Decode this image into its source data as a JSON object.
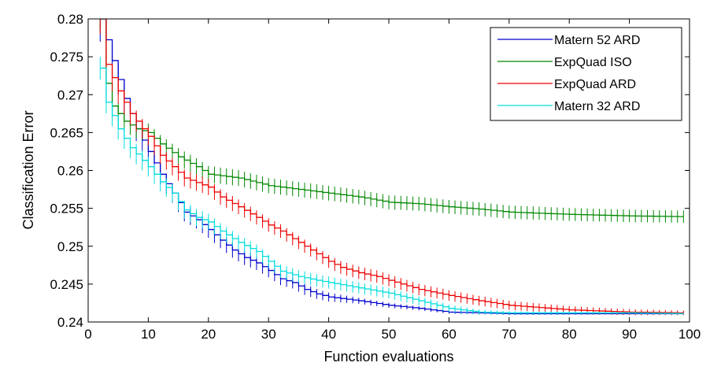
{
  "chart_data": {
    "type": "line",
    "title": "",
    "xlabel": "Function evaluations",
    "ylabel": "Classification Error",
    "xlim": [
      0,
      100
    ],
    "ylim": [
      0.24,
      0.28
    ],
    "xticks": [
      0,
      10,
      20,
      30,
      40,
      50,
      60,
      70,
      80,
      90,
      100
    ],
    "yticks": [
      0.24,
      0.245,
      0.25,
      0.255,
      0.26,
      0.265,
      0.27,
      0.275,
      0.28
    ],
    "xtick_labels": [
      "0",
      "10",
      "20",
      "30",
      "40",
      "50",
      "60",
      "70",
      "80",
      "90",
      "100"
    ],
    "ytick_labels": [
      "0.24",
      "0.245",
      "0.25",
      "0.255",
      "0.26",
      "0.265",
      "0.27",
      "0.275",
      "0.28"
    ],
    "grid": false,
    "legend_position": "top-right",
    "error_bars": true,
    "series": [
      {
        "name": "Matern 52 ARD",
        "color": "#0000cc",
        "knots": [
          [
            2,
            0.28
          ],
          [
            4,
            0.2745
          ],
          [
            6,
            0.2695
          ],
          [
            8,
            0.2655
          ],
          [
            10,
            0.2625
          ],
          [
            12,
            0.2595
          ],
          [
            14,
            0.257
          ],
          [
            16,
            0.2545
          ],
          [
            18,
            0.2535
          ],
          [
            20,
            0.2522
          ],
          [
            22,
            0.2508
          ],
          [
            24,
            0.2495
          ],
          [
            26,
            0.2485
          ],
          [
            28,
            0.2478
          ],
          [
            30,
            0.2468
          ],
          [
            32,
            0.2457
          ],
          [
            34,
            0.2452
          ],
          [
            36,
            0.2443
          ],
          [
            38,
            0.2437
          ],
          [
            40,
            0.2433
          ],
          [
            45,
            0.2428
          ],
          [
            50,
            0.2422
          ],
          [
            55,
            0.2418
          ],
          [
            60,
            0.2413
          ],
          [
            70,
            0.2411
          ],
          [
            80,
            0.2411
          ],
          [
            90,
            0.2411
          ],
          [
            99,
            0.2411
          ]
        ],
        "err_knots": [
          [
            2,
            0.003
          ],
          [
            5,
            0.002
          ],
          [
            10,
            0.0014
          ],
          [
            20,
            0.0011
          ],
          [
            30,
            0.0009
          ],
          [
            37,
            0.0007
          ],
          [
            45,
            0.0004
          ],
          [
            60,
            0.0002
          ],
          [
            99,
            0.0001
          ]
        ]
      },
      {
        "name": "ExpQuad ISO",
        "color": "#008800",
        "knots": [
          [
            2,
            0.28
          ],
          [
            3,
            0.2715
          ],
          [
            4,
            0.2685
          ],
          [
            6,
            0.2665
          ],
          [
            8,
            0.2655
          ],
          [
            10,
            0.265
          ],
          [
            12,
            0.2635
          ],
          [
            15,
            0.2618
          ],
          [
            18,
            0.2605
          ],
          [
            20,
            0.2595
          ],
          [
            25,
            0.259
          ],
          [
            30,
            0.258
          ],
          [
            35,
            0.2575
          ],
          [
            40,
            0.257
          ],
          [
            45,
            0.2565
          ],
          [
            50,
            0.2558
          ],
          [
            55,
            0.2556
          ],
          [
            60,
            0.2552
          ],
          [
            65,
            0.2549
          ],
          [
            70,
            0.2545
          ],
          [
            80,
            0.2542
          ],
          [
            90,
            0.254
          ],
          [
            99,
            0.2539
          ]
        ],
        "err_knots": [
          [
            2,
            0.0015
          ],
          [
            10,
            0.0012
          ],
          [
            30,
            0.001
          ],
          [
            60,
            0.0009
          ],
          [
            99,
            0.0008
          ]
        ]
      },
      {
        "name": "ExpQuad ARD",
        "color": "#ee0000",
        "knots": [
          [
            2,
            0.28
          ],
          [
            3,
            0.274
          ],
          [
            5,
            0.2705
          ],
          [
            7,
            0.2675
          ],
          [
            10,
            0.2645
          ],
          [
            12,
            0.262
          ],
          [
            14,
            0.2605
          ],
          [
            16,
            0.259
          ],
          [
            20,
            0.2578
          ],
          [
            22,
            0.2565
          ],
          [
            25,
            0.2552
          ],
          [
            28,
            0.2538
          ],
          [
            30,
            0.2528
          ],
          [
            32,
            0.252
          ],
          [
            35,
            0.2505
          ],
          [
            38,
            0.249
          ],
          [
            40,
            0.248
          ],
          [
            42,
            0.2472
          ],
          [
            45,
            0.2465
          ],
          [
            48,
            0.246
          ],
          [
            50,
            0.2455
          ],
          [
            55,
            0.2443
          ],
          [
            60,
            0.2435
          ],
          [
            65,
            0.2428
          ],
          [
            70,
            0.2422
          ],
          [
            80,
            0.2416
          ],
          [
            90,
            0.2413
          ],
          [
            99,
            0.2412
          ]
        ],
        "err_knots": [
          [
            2,
            0.002
          ],
          [
            10,
            0.0012
          ],
          [
            30,
            0.0009
          ],
          [
            50,
            0.0008
          ],
          [
            70,
            0.0006
          ],
          [
            99,
            0.0003
          ]
        ]
      },
      {
        "name": "Matern 32 ARD",
        "color": "#00dddd",
        "knots": [
          [
            2,
            0.2735
          ],
          [
            3,
            0.269
          ],
          [
            5,
            0.2655
          ],
          [
            7,
            0.263
          ],
          [
            10,
            0.2605
          ],
          [
            12,
            0.2585
          ],
          [
            14,
            0.257
          ],
          [
            16,
            0.2548
          ],
          [
            18,
            0.2538
          ],
          [
            20,
            0.2532
          ],
          [
            22,
            0.252
          ],
          [
            25,
            0.2505
          ],
          [
            28,
            0.2493
          ],
          [
            30,
            0.248
          ],
          [
            32,
            0.2467
          ],
          [
            35,
            0.246
          ],
          [
            38,
            0.2455
          ],
          [
            40,
            0.2452
          ],
          [
            45,
            0.2445
          ],
          [
            50,
            0.2438
          ],
          [
            55,
            0.2428
          ],
          [
            60,
            0.2418
          ],
          [
            65,
            0.2413
          ],
          [
            70,
            0.2412
          ],
          [
            80,
            0.2412
          ],
          [
            90,
            0.2412
          ],
          [
            99,
            0.2411
          ]
        ],
        "err_knots": [
          [
            2,
            0.0015
          ],
          [
            10,
            0.0013
          ],
          [
            30,
            0.0009
          ],
          [
            50,
            0.0007
          ],
          [
            60,
            0.0005
          ],
          [
            70,
            0.0002
          ],
          [
            99,
            0.0001
          ]
        ]
      }
    ]
  }
}
